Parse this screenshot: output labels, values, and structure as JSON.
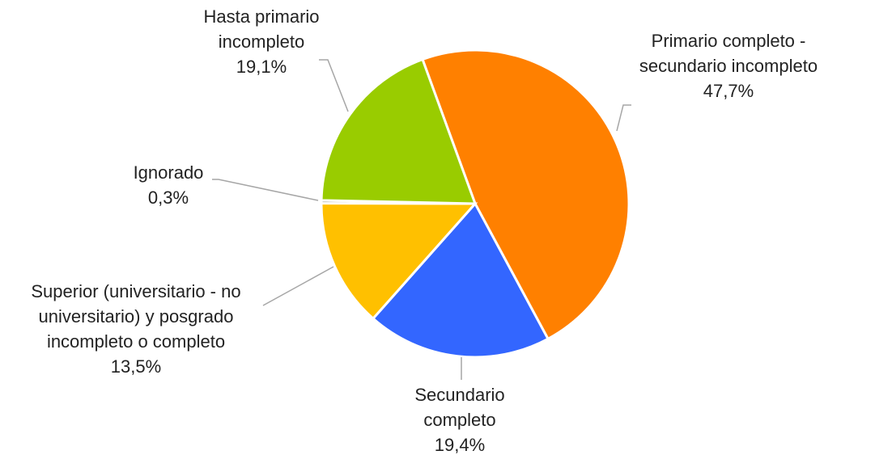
{
  "chart_data": {
    "type": "pie",
    "categories": [
      "Primario completo - secundario incompleto",
      "Secundario completo",
      "Superior (universitario - no universitario) y posgrado incompleto o completo",
      "Ignorado",
      "Hasta primario incompleto"
    ],
    "values": [
      47.7,
      19.4,
      13.5,
      0.3,
      19.1
    ],
    "value_labels": [
      "47,7%",
      "19,4%",
      "13,5%",
      "0,3%",
      "19,1%"
    ],
    "colors": [
      "#ff8000",
      "#3366ff",
      "#ffc000",
      "#a5a5a5",
      "#99cc00"
    ]
  }
}
